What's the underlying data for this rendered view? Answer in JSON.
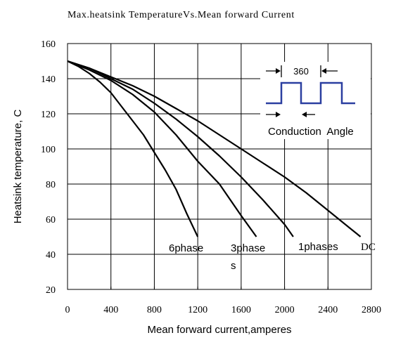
{
  "chart_data": {
    "type": "line",
    "title": "Max.heatsink TemperatureVs.Mean forward Current",
    "xlabel": "Mean forward current,amperes",
    "ylabel": "Heatsink temperature, C",
    "xlim": [
      0,
      2800
    ],
    "ylim": [
      20,
      160
    ],
    "xticks": [
      "0",
      "400",
      "800",
      "1200",
      "1600",
      "2000",
      "2400",
      "2800"
    ],
    "yticks": [
      "20",
      "40",
      "60",
      "80",
      "100",
      "120",
      "140",
      "160"
    ],
    "grid": true,
    "series": [
      {
        "name": "6phase",
        "x": [
          0,
          100,
          200,
          300,
          400,
          500,
          600,
          700,
          800,
          900,
          1000,
          1100,
          1200
        ],
        "y": [
          150,
          147,
          143,
          138,
          132,
          124,
          116,
          108,
          98,
          88,
          77,
          63,
          50
        ]
      },
      {
        "name": "3phase s",
        "x": [
          0,
          200,
          400,
          600,
          800,
          1000,
          1200,
          1400,
          1600,
          1740
        ],
        "y": [
          150,
          145,
          139,
          131,
          121,
          108,
          93,
          80,
          62,
          50
        ]
      },
      {
        "name": "1phases",
        "x": [
          0,
          200,
          400,
          600,
          800,
          1000,
          1200,
          1400,
          1600,
          1800,
          2000,
          2080
        ],
        "y": [
          150,
          146,
          140,
          134,
          126,
          117,
          107,
          96,
          84,
          71,
          57,
          50
        ]
      },
      {
        "name": "DC",
        "x": [
          0,
          200,
          400,
          600,
          800,
          1000,
          1200,
          1400,
          1600,
          1800,
          2000,
          2200,
          2400,
          2600,
          2700
        ],
        "y": [
          150,
          146,
          141,
          136,
          130,
          123,
          116,
          108,
          100,
          92,
          84,
          75,
          65,
          55,
          50
        ]
      }
    ],
    "annotations": {
      "angle_value": "360",
      "angle_label": "Conduction  Angle"
    },
    "colors": {
      "line": "#000000",
      "waveform": "#2b3fa0",
      "grid": "#000000"
    }
  }
}
